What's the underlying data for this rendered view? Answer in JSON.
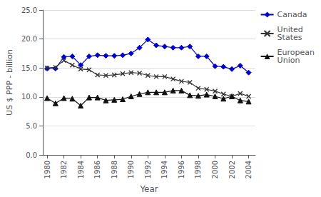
{
  "chart_data": {
    "type": "line",
    "xlabel": "Year",
    "ylabel": "US $ PPP - billion",
    "x": [
      1980,
      1981,
      1982,
      1983,
      1984,
      1985,
      1986,
      1987,
      1988,
      1989,
      1990,
      1991,
      1992,
      1993,
      1994,
      1995,
      1996,
      1997,
      1998,
      1999,
      2000,
      2001,
      2002,
      2003,
      2004
    ],
    "series": [
      {
        "name": "Canada",
        "color": "#0000cc",
        "marker": "diamond",
        "values": [
          14.9,
          14.9,
          16.9,
          17.0,
          15.5,
          17.0,
          17.2,
          17.1,
          17.1,
          17.2,
          17.5,
          18.5,
          19.9,
          18.9,
          18.7,
          18.5,
          18.5,
          18.7,
          17.0,
          17.0,
          15.3,
          15.2,
          14.8,
          15.4,
          14.2
        ]
      },
      {
        "name": "United\nStates",
        "color": "#333333",
        "marker": "x",
        "values": [
          15.0,
          15.1,
          16.3,
          15.5,
          14.8,
          14.7,
          13.8,
          13.7,
          13.8,
          14.0,
          14.2,
          14.1,
          13.7,
          13.5,
          13.5,
          13.1,
          12.7,
          12.5,
          11.5,
          11.3,
          11.0,
          10.5,
          10.1,
          10.6,
          10.1
        ]
      },
      {
        "name": "European\nUnion",
        "color": "#111111",
        "marker": "triangle",
        "values": [
          9.8,
          8.9,
          9.8,
          9.7,
          8.5,
          9.9,
          9.9,
          9.4,
          9.5,
          9.6,
          10.1,
          10.5,
          10.8,
          10.8,
          10.8,
          11.1,
          11.1,
          10.3,
          10.2,
          10.4,
          10.1,
          9.7,
          10.1,
          9.4,
          9.2
        ]
      }
    ],
    "xlim": [
      1979.5,
      2004.8
    ],
    "xticks": [
      1980,
      1982,
      1984,
      1986,
      1988,
      1990,
      1992,
      1994,
      1996,
      1998,
      2000,
      2002,
      2004
    ],
    "ylim": [
      0.0,
      25.0
    ],
    "yticks": [
      {
        "value": 0,
        "label": "0.0"
      },
      {
        "value": 5,
        "label": "5.0"
      },
      {
        "value": 10,
        "label": "10.0"
      },
      {
        "value": 15,
        "label": "15.0"
      },
      {
        "value": 20,
        "label": "20.0"
      },
      {
        "value": 25,
        "label": "25.0"
      }
    ],
    "grid": true,
    "legend": "right"
  }
}
